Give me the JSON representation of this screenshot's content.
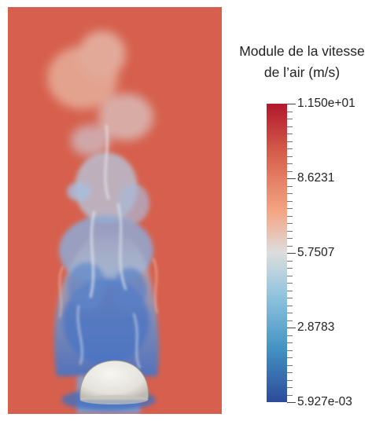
{
  "legend": {
    "title_line1": "Module de la vitesse",
    "title_line2": "de l’air  (m/s)",
    "labels": [
      "1.150e+01",
      "8.6231",
      "5.7507",
      "2.8783",
      "5.927e-03"
    ]
  },
  "colormap": {
    "high": "#b2182b",
    "mid": "#dddddd",
    "low": "#2c4b9a",
    "background_field": "#d6604d",
    "object": "#ebe9e4"
  }
}
